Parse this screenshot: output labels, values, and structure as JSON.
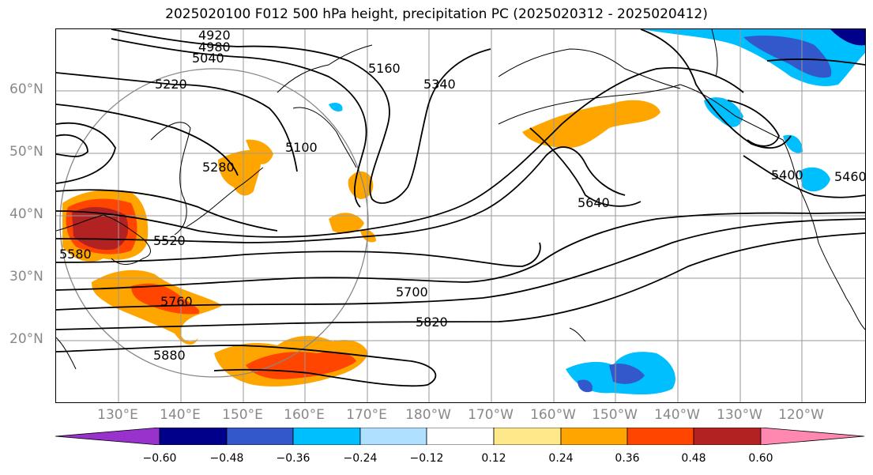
{
  "title": "2025020100 F012 500 hPa height, precipitation PC (2025020312 - 2025020412)",
  "lat_labels": [
    "60°N",
    "50°N",
    "40°N",
    "30°N",
    "20°N"
  ],
  "lon_labels": [
    "130°E",
    "140°E",
    "150°E",
    "160°E",
    "170°E",
    "180°W",
    "170°W",
    "160°W",
    "150°W",
    "140°W",
    "130°W",
    "120°W"
  ],
  "contour_labels": [
    "4920",
    "4980",
    "5040",
    "5100",
    "5160",
    "5220",
    "5280",
    "5340",
    "5400",
    "5460",
    "5520",
    "5580",
    "5640",
    "5700",
    "5760",
    "5820",
    "5880"
  ],
  "colorbar": {
    "ticks": [
      "−0.60",
      "−0.48",
      "−0.36",
      "−0.24",
      "−0.12",
      "0.12",
      "0.24",
      "0.36",
      "0.48",
      "0.60"
    ],
    "colors": [
      "#9932cc",
      "#00008b",
      "#3358cc",
      "#00bfff",
      "#b0e0ff",
      "#ffffff",
      "#ffe88a",
      "#ffa500",
      "#ff4500",
      "#b22222",
      "#ff88b0"
    ]
  }
}
